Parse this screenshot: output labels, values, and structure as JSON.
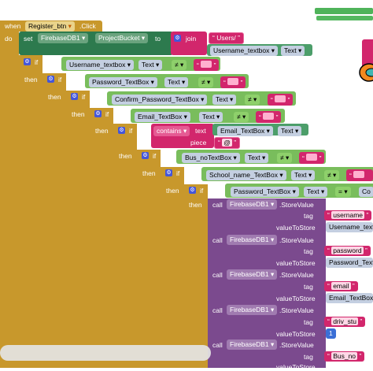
{
  "event": {
    "when": "when",
    "do": "do",
    "component": "Register_btn",
    "handler": ".Click"
  },
  "set_block": {
    "set": "set",
    "component": "FirebaseDB1",
    "property": "ProjectBucket",
    "to": "to"
  },
  "join_block": {
    "label": "join",
    "users_path": "Users/",
    "username_box": "Username_textbox",
    "text_prop": "Text"
  },
  "if_label": "if",
  "then_label": "then",
  "conditions": [
    {
      "box": "Username_textbox",
      "prop": "Text",
      "op": "≠"
    },
    {
      "box": "Password_TextBox",
      "prop": "Text",
      "op": "≠"
    },
    {
      "box": "Confirm_Password_TextBox",
      "prop": "Text",
      "op": "≠"
    },
    {
      "box": "Email_TextBox",
      "prop": "Text",
      "op": "≠"
    }
  ],
  "contains_block": {
    "contains": "contains",
    "text": "text",
    "box": "Email_TextBox",
    "prop": "Text",
    "piece": "piece",
    "piece_value": "@"
  },
  "conditions2": [
    {
      "box": "Bus_noTextBox",
      "prop": "Text",
      "op": "≠"
    },
    {
      "box": "School_name_TextBox",
      "prop": "Text",
      "op": "≠"
    },
    {
      "box": "Password_TextBox",
      "prop": "Text",
      "op": "=",
      "right": "Co"
    }
  ],
  "store_calls": [
    {
      "call": "call",
      "component": "FirebaseDB1",
      "method": ".StoreValue",
      "tag_label": "tag",
      "tag": "username",
      "vts_label": "valueToStore",
      "value": "Username_textbo"
    },
    {
      "call": "call",
      "component": "FirebaseDB1",
      "method": ".StoreValue",
      "tag_label": "tag",
      "tag": "password",
      "vts_label": "valueToStore",
      "value": "Password_Text"
    },
    {
      "call": "call",
      "component": "FirebaseDB1",
      "method": ".StoreValue",
      "tag_label": "tag",
      "tag": "email",
      "vts_label": "valueToStore",
      "value": "Email_TextBox"
    },
    {
      "call": "call",
      "component": "FirebaseDB1",
      "method": ".StoreValue",
      "tag_label": "tag",
      "tag": "driv_stu",
      "vts_label": "valueToStore",
      "value": "1"
    },
    {
      "call": "call",
      "component": "FirebaseDB1",
      "method": ".StoreValue",
      "tag_label": "tag",
      "tag": "Bus_no",
      "vts_label": "valueToStore",
      "value": ""
    }
  ],
  "dropdown_arrow": "▾",
  "colors": {
    "event": "#c8982c",
    "set": "#2d7a4e",
    "join": "#d2266c",
    "call": "#7b4a8e",
    "control": "#c8982c"
  }
}
